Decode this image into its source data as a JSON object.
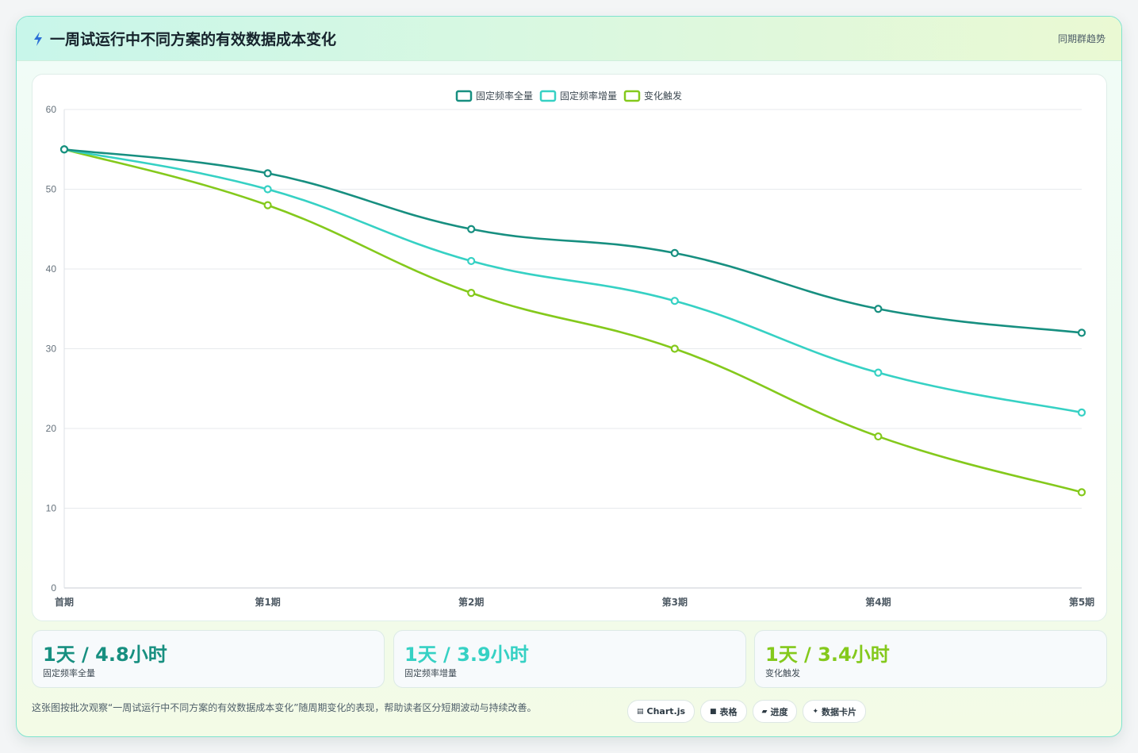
{
  "header": {
    "icon": "lightning-icon",
    "title": "一周试运行中不同方案的有效数据成本变化",
    "tag": "同期群趋势"
  },
  "chart_data": {
    "type": "line",
    "categories": [
      "首期",
      "第1期",
      "第2期",
      "第3期",
      "第4期",
      "第5期"
    ],
    "series": [
      {
        "name": "固定频率全量",
        "color": "#178f80",
        "values": [
          55,
          52,
          45,
          42,
          35,
          32
        ]
      },
      {
        "name": "固定频率增量",
        "color": "#36d1c4",
        "values": [
          55,
          50,
          41,
          36,
          27,
          22
        ]
      },
      {
        "name": "变化触发",
        "color": "#84c91c",
        "values": [
          55,
          48,
          37,
          30,
          19,
          12
        ]
      }
    ],
    "ylim": [
      0,
      60
    ],
    "yticks": [
      0,
      10,
      20,
      30,
      40,
      50,
      60
    ],
    "grid": true,
    "legend": "top-center",
    "title": "",
    "xlabel": "",
    "ylabel": ""
  },
  "stats": [
    {
      "value": "1天 / 4.8小时",
      "label": "固定频率全量",
      "color": "#178f80"
    },
    {
      "value": "1天 / 3.9小时",
      "label": "固定频率增量",
      "color": "#36d1c4"
    },
    {
      "value": "1天 / 3.4小时",
      "label": "变化触发",
      "color": "#84c91c"
    }
  ],
  "footer": {
    "description": "这张图按批次观察“一周试运行中不同方案的有效数据成本变化”随周期变化的表现，帮助读者区分短期波动与持续改善。",
    "chips": [
      {
        "icon": "chart-icon",
        "glyph": "▤",
        "label": "Chart.js"
      },
      {
        "icon": "table-icon",
        "glyph": "■",
        "label": "表格"
      },
      {
        "icon": "progress-icon",
        "glyph": "▰",
        "label": "进度"
      },
      {
        "icon": "card-icon",
        "glyph": "✦",
        "label": "数据卡片"
      }
    ]
  }
}
